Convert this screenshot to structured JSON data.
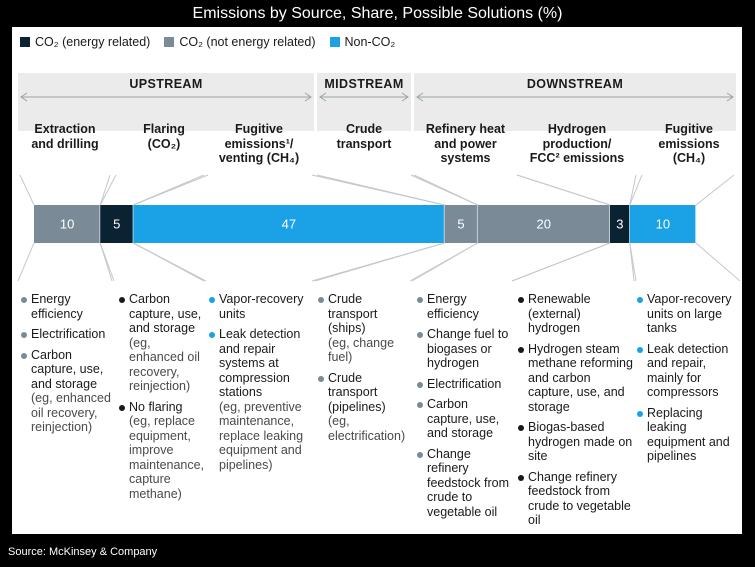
{
  "title": "Emissions by Source, Share, Possible Solutions (%)",
  "source": "Source: McKinsey & Company",
  "colors": {
    "co2_energy": "#0b2233",
    "co2_not_energy": "#7a8a96",
    "non_co2": "#1aa1e6",
    "dot_dark": "#1a1a1a",
    "dot_grey": "#7a8a96",
    "dot_blue": "#1aa1e6"
  },
  "legend": [
    {
      "label": "CO₂ (energy related)",
      "color_key": "co2_energy"
    },
    {
      "label": "CO₂ (not energy related)",
      "color_key": "co2_not_energy"
    },
    {
      "label": "Non-CO₂",
      "color_key": "non_co2"
    }
  ],
  "stages": [
    "UPSTREAM",
    "MIDSTREAM",
    "DOWNSTREAM"
  ],
  "chart_data": {
    "type": "bar",
    "orientation": "horizontal-stacked",
    "title": "Emissions by Source, Share, Possible Solutions (%)",
    "segments": [
      {
        "value": 10,
        "label": "10",
        "type": "CO₂ (not energy related)",
        "source": "Extraction and drilling"
      },
      {
        "value": 5,
        "label": "5",
        "type": "CO₂ (energy related)",
        "source": "Flaring (CO₂)"
      },
      {
        "value": 47,
        "label": "47",
        "type": "Non-CO₂",
        "source": "Fugitive emissions/venting (CH₄)"
      },
      {
        "value": 5,
        "label": "5",
        "type": "CO₂ (not energy related)",
        "source": "Crude transport"
      },
      {
        "value": 20,
        "label": "20",
        "type": "CO₂ (not energy related)",
        "source": "Refinery heat and power systems"
      },
      {
        "value": 3,
        "label": "3",
        "type": "CO₂ (energy related)",
        "source": "Hydrogen production/FCC emissions"
      },
      {
        "value": 10,
        "label": "10",
        "type": "Non-CO₂",
        "source": "Fugitive emissions (CH₄)"
      }
    ]
  },
  "columns": [
    {
      "label_lines": [
        "Extraction",
        "and drilling"
      ],
      "solutions": [
        {
          "main": "Energy efficiency",
          "detail": ""
        },
        {
          "main": "Electrification",
          "detail": ""
        },
        {
          "main": "Carbon capture, use, and storage",
          "detail": "(eg, enhanced oil recovery, reinjection)"
        }
      ]
    },
    {
      "label_lines": [
        "Flaring",
        "(CO₂)"
      ],
      "solutions": [
        {
          "main": "Carbon capture, use, and storage",
          "detail": "(eg, enhanced oil recovery, reinjection)"
        },
        {
          "main": "No flaring",
          "detail": "(eg, replace equipment, improve maintenance, capture methane)"
        }
      ]
    },
    {
      "label_lines": [
        "Fugitive",
        "emissions¹/",
        "venting (CH₄)"
      ],
      "solutions": [
        {
          "main": "Vapor-recovery units",
          "detail": ""
        },
        {
          "main": "Leak detection and repair systems at compression stations",
          "detail": "(eg, preventive maintenance, replace leaking equipment and pipelines)"
        }
      ]
    },
    {
      "label_lines": [
        "Crude",
        "transport"
      ],
      "solutions": [
        {
          "main": "Crude transport (ships)",
          "detail": "(eg, change fuel)"
        },
        {
          "main": "Crude transport (pipelines)",
          "detail": "(eg, electrification)"
        }
      ]
    },
    {
      "label_lines": [
        "Refinery heat",
        "and power",
        "systems"
      ],
      "solutions": [
        {
          "main": "Energy efficiency",
          "detail": ""
        },
        {
          "main": "Change fuel to biogases or hydrogen",
          "detail": ""
        },
        {
          "main": "Electrification",
          "detail": ""
        },
        {
          "main": "Carbon capture, use, and storage",
          "detail": ""
        },
        {
          "main": "Change refinery feedstock from crude to vegetable oil",
          "detail": ""
        }
      ]
    },
    {
      "label_lines": [
        "Hydrogen",
        "production/",
        "FCC² emissions"
      ],
      "solutions": [
        {
          "main": "Renewable (external) hydrogen",
          "detail": ""
        },
        {
          "main": "Hydrogen steam methane reforming and carbon capture, use, and storage",
          "detail": ""
        },
        {
          "main": "Biogas-based hydrogen made on site",
          "detail": ""
        },
        {
          "main": "Change refinery feedstock from crude to vegetable oil",
          "detail": ""
        }
      ]
    },
    {
      "label_lines": [
        "Fugitive",
        "emissions",
        "(CH₄)"
      ],
      "solutions": [
        {
          "main": "Vapor-recovery units on large tanks",
          "detail": ""
        },
        {
          "main": "Leak detection and repair, mainly for compressors",
          "detail": ""
        },
        {
          "main": "Replacing leaking equipment and pipelines",
          "detail": ""
        }
      ]
    }
  ]
}
